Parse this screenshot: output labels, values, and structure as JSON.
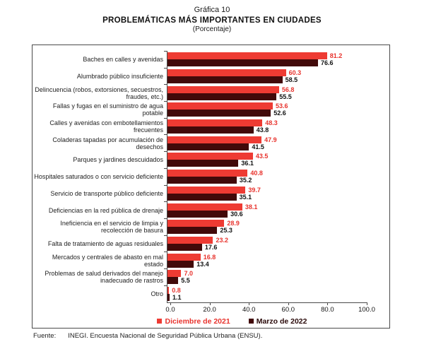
{
  "page": {
    "title_line1": "Gráfica 10",
    "title_line2": "PROBLEMÁTICAS MÁS IMPORTANTES EN CIUDADES",
    "title_line3": "(Porcentaje)",
    "source_label": "Fuente:",
    "source_text": "INEGI. Encuesta Nacional de Seguridad Pública Urbana (ENSU)."
  },
  "chart_data": {
    "type": "bar",
    "orientation": "horizontal",
    "title": "PROBLEMÁTICAS MÁS IMPORTANTES EN CIUDADES",
    "subtitle": "(Porcentaje)",
    "xlim": [
      0,
      100
    ],
    "x_ticks": [
      "0.0",
      "20.0",
      "40.0",
      "60.0",
      "80.0",
      "100.0"
    ],
    "grid": false,
    "legend_position": "bottom",
    "axis_color": "#4a4a4a",
    "categories": [
      "Baches en calles y avenidas",
      "Alumbrado público insuficiente",
      "Delincuencia (robos, extorsiones, secuestros, fraudes, etc.)",
      "Fallas y fugas en el suministro de agua potable",
      "Calles y avenidas con embotellamientos frecuentes",
      "Coladeras tapadas por acumulación de desechos",
      "Parques y jardines descuidados",
      "Hospitales saturados o con servicio deficiente",
      "Servicio de transporte público deficiente",
      "Deficiencias en la red pública de drenaje",
      "Ineficiencia en el servicio de limpia y recolección de basura",
      "Falta de tratamiento de aguas residuales",
      "Mercados y centrales de abasto en mal estado",
      "Problemas de salud derivados del manejo inadecuado de rastros",
      "Otro"
    ],
    "series": [
      {
        "name": "Diciembre de 2021",
        "key": "dic-2021",
        "color": "#ee3b33",
        "label_color": "#e8332d",
        "values": [
          81.2,
          60.3,
          56.8,
          53.6,
          48.3,
          47.9,
          43.5,
          40.8,
          39.7,
          38.1,
          28.9,
          23.2,
          16.8,
          7.0,
          0.8
        ]
      },
      {
        "name": "Marzo de 2022",
        "key": "mar-2022",
        "color": "#420a0a",
        "label_color": "#111111",
        "values": [
          76.6,
          58.5,
          55.5,
          52.6,
          43.8,
          41.5,
          36.1,
          35.2,
          35.1,
          30.6,
          25.3,
          17.6,
          13.4,
          5.5,
          1.1
        ]
      }
    ]
  }
}
